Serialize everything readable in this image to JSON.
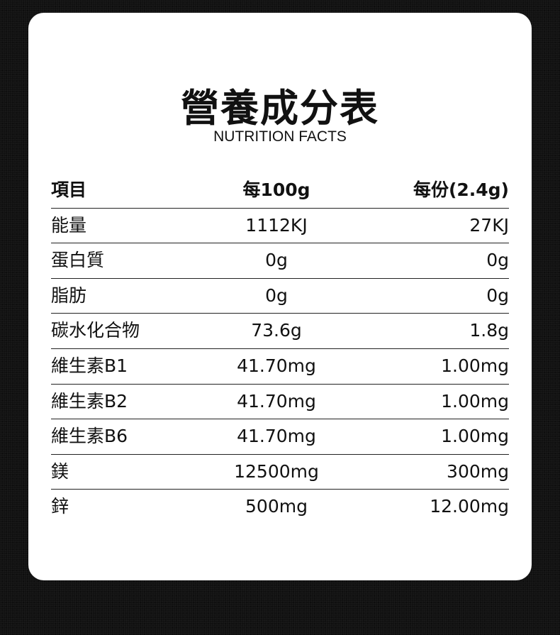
{
  "title": "營養成分表",
  "subtitle": "NUTRITION FACTS",
  "header": [
    "項目",
    "每100g",
    "每份(2.4g)"
  ],
  "rows": [
    [
      "能量",
      "1112KJ",
      "27KJ"
    ],
    [
      "蛋白質",
      "0g",
      "0g"
    ],
    [
      "脂肪",
      "0g",
      "0g"
    ],
    [
      "碳水化合物",
      "73.6g",
      "1.8g"
    ],
    [
      "維生素B1",
      "41.70mg",
      "1.00mg"
    ],
    [
      "維生素B2",
      "41.70mg",
      "1.00mg"
    ],
    [
      "維生素B6",
      "41.70mg",
      "1.00mg"
    ],
    [
      "鎂",
      "12500mg",
      "300mg"
    ],
    [
      "鋅",
      "500mg",
      "12.00mg"
    ]
  ]
}
